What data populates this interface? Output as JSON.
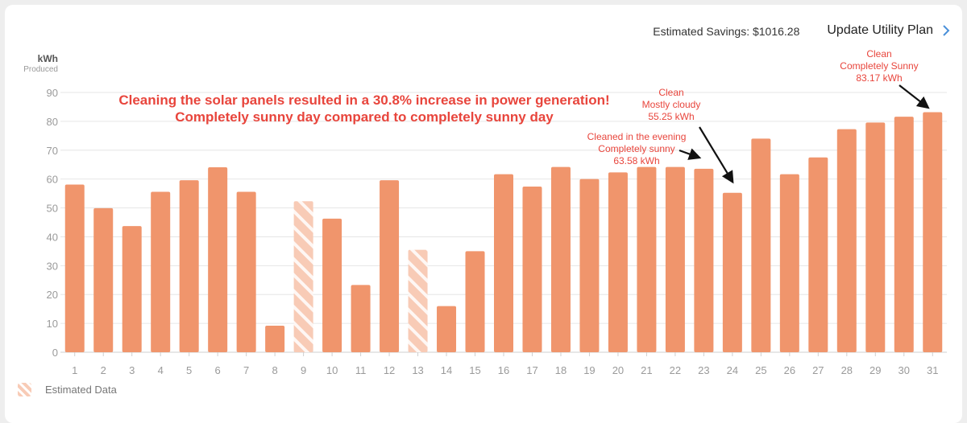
{
  "header": {
    "savings_text": "Estimated Savings: $1016.28",
    "update_label": "Update Utility Plan",
    "chevron_icon": "chevron-right-icon"
  },
  "legend": {
    "estimated_label": "Estimated Data",
    "icon": "hatched-square-icon"
  },
  "colors": {
    "bar": "#f0956c",
    "estimated_bar": "#f8cbb6",
    "annotation_red": "#e8453c",
    "grid": "#e6e6e6",
    "axis_text": "#9a9a9a"
  },
  "chart_data": {
    "type": "bar",
    "ylabel": "kWh",
    "ylabel_sub": "Produced",
    "ylim": [
      0,
      90
    ],
    "yticks": [
      0,
      10,
      20,
      30,
      40,
      50,
      60,
      70,
      80,
      90
    ],
    "grid": true,
    "categories": [
      "1",
      "2",
      "3",
      "4",
      "5",
      "6",
      "7",
      "8",
      "9",
      "10",
      "11",
      "12",
      "13",
      "14",
      "15",
      "16",
      "17",
      "18",
      "19",
      "20",
      "21",
      "22",
      "23",
      "24",
      "25",
      "26",
      "27",
      "28",
      "29",
      "30",
      "31"
    ],
    "values": [
      58.1,
      49.9,
      43.7,
      55.6,
      59.6,
      64.1,
      55.6,
      9.2,
      52.3,
      46.3,
      23.3,
      59.6,
      35.5,
      16.0,
      35.0,
      61.7,
      57.4,
      64.2,
      60.0,
      62.3,
      64.2,
      64.2,
      63.58,
      55.25,
      74.0,
      61.7,
      67.5,
      77.3,
      79.6,
      81.6,
      83.17
    ],
    "estimated": [
      false,
      false,
      false,
      false,
      false,
      false,
      false,
      false,
      true,
      false,
      false,
      false,
      true,
      false,
      false,
      false,
      false,
      false,
      false,
      false,
      false,
      false,
      false,
      false,
      false,
      false,
      false,
      false,
      false,
      false,
      false
    ],
    "headline": [
      "Cleaning the solar panels resulted in a 30.8% increase in power generation!",
      "Completely sunny day compared to completely sunny day"
    ],
    "annotations": [
      {
        "day": 23,
        "lines": [
          "Cleaned in the evening",
          "Completely sunny",
          "63.58 kWh"
        ]
      },
      {
        "day": 24,
        "lines": [
          "Clean",
          "Mostly cloudy",
          "55.25 kWh"
        ]
      },
      {
        "day": 31,
        "lines": [
          "Clean",
          "Completely Sunny",
          "83.17 kWh"
        ]
      }
    ]
  }
}
